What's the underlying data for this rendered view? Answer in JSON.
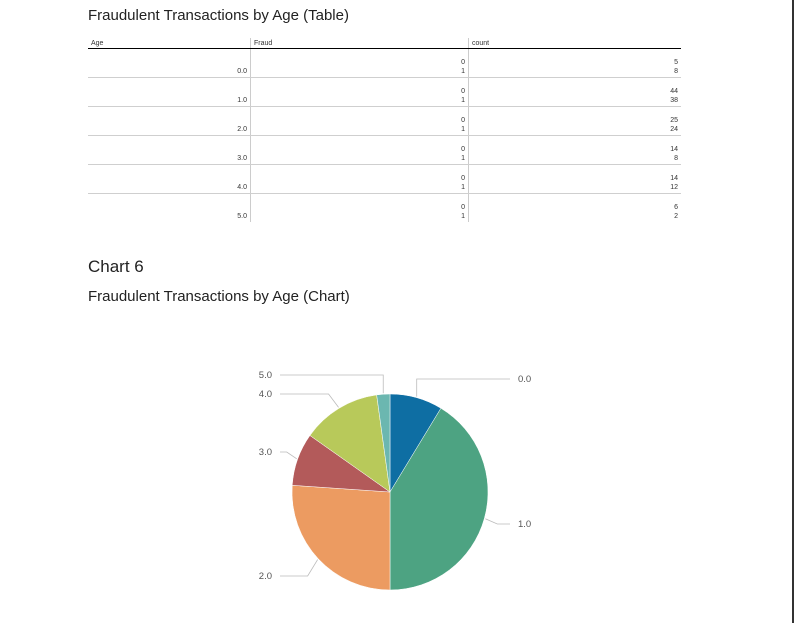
{
  "table_section": {
    "title": "Fraudulent Transactions by Age (Table)",
    "columns": [
      "Age",
      "Fraud",
      "count"
    ],
    "rows": [
      {
        "age": "0.0",
        "fraud": [
          "0",
          "1"
        ],
        "count": [
          "5",
          "8"
        ]
      },
      {
        "age": "1.0",
        "fraud": [
          "0",
          "1"
        ],
        "count": [
          "44",
          "38"
        ]
      },
      {
        "age": "2.0",
        "fraud": [
          "0",
          "1"
        ],
        "count": [
          "25",
          "24"
        ]
      },
      {
        "age": "3.0",
        "fraud": [
          "0",
          "1"
        ],
        "count": [
          "14",
          "8"
        ]
      },
      {
        "age": "4.0",
        "fraud": [
          "0",
          "1"
        ],
        "count": [
          "14",
          "12"
        ]
      },
      {
        "age": "5.0",
        "fraud": [
          "0",
          "1"
        ],
        "count": [
          "6",
          "2"
        ]
      }
    ]
  },
  "chart_section": {
    "heading": "Chart 6",
    "title": "Fraudulent Transactions by Age (Chart)"
  },
  "chart_data": {
    "type": "pie",
    "categories": [
      "0.0",
      "1.0",
      "2.0",
      "3.0",
      "4.0",
      "5.0"
    ],
    "values": [
      8,
      38,
      24,
      8,
      12,
      2
    ],
    "colors": [
      "#0e6ea3",
      "#4da382",
      "#ec9b61",
      "#b35a5a",
      "#b8c95a",
      "#6bb7b0"
    ],
    "legend": "none"
  }
}
